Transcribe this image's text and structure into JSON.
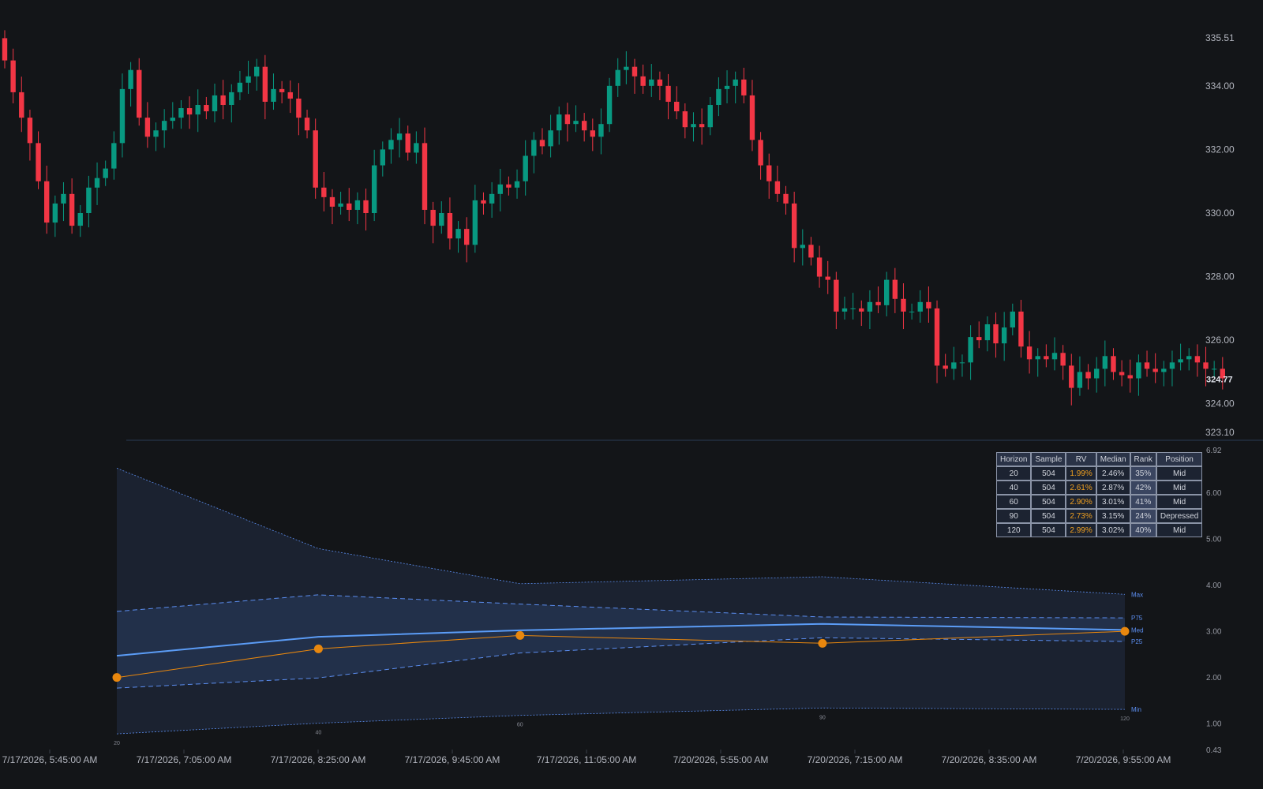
{
  "colors": {
    "background": "#131518",
    "up": "#089981",
    "down": "#f23645",
    "median_line": "#5b9cf6",
    "band_line": "#5b8def",
    "rv_line": "#e8870e",
    "outer_band_fill": "#1b2230",
    "inner_band_fill": "#22304a"
  },
  "price_axis": {
    "labels": [
      "335.51",
      "334.00",
      "332.00",
      "330.00",
      "328.00",
      "326.00",
      "324.00",
      "323.10"
    ],
    "last_price": "324.77",
    "range": [
      323.1,
      335.51
    ]
  },
  "time_axis": {
    "labels": [
      "7/17/2026, 5:45:00 AM",
      "7/17/2026, 7:05:00 AM",
      "7/17/2026, 8:25:00 AM",
      "7/17/2026, 9:45:00 AM",
      "7/17/2026, 11:05:00 AM",
      "7/20/2026, 5:55:00 AM",
      "7/20/2026, 7:15:00 AM",
      "7/20/2026, 8:35:00 AM",
      "7/20/2026, 9:55:00 AM"
    ]
  },
  "lower_axis": {
    "labels": [
      "6.92",
      "6.00",
      "5.00",
      "4.00",
      "3.00",
      "2.00",
      "1.00",
      "0.43"
    ],
    "range": [
      0.43,
      6.92
    ]
  },
  "chart_data": [
    {
      "type": "candlestick",
      "ylim": [
        323.1,
        335.51
      ],
      "closes": [
        334.8,
        333.8,
        333.0,
        332.2,
        331.0,
        329.7,
        330.3,
        330.6,
        329.6,
        330.0,
        330.8,
        331.1,
        331.4,
        332.2,
        333.9,
        334.5,
        333.0,
        332.4,
        332.6,
        332.9,
        333.0,
        333.3,
        333.1,
        333.4,
        333.2,
        333.7,
        333.4,
        333.8,
        334.1,
        334.3,
        334.6,
        333.5,
        333.9,
        333.8,
        333.6,
        333.0,
        332.6,
        330.8,
        330.5,
        330.2,
        330.3,
        330.1,
        330.4,
        330.0,
        331.5,
        332.0,
        332.3,
        332.5,
        331.9,
        332.2,
        330.1,
        329.6,
        330.0,
        329.2,
        329.5,
        329.0,
        330.4,
        330.3,
        330.6,
        330.9,
        330.8,
        331.0,
        331.8,
        332.3,
        332.1,
        332.6,
        333.1,
        332.8,
        332.9,
        332.6,
        332.4,
        332.8,
        334.0,
        334.5,
        334.6,
        334.3,
        334.0,
        334.2,
        334.0,
        333.5,
        333.2,
        332.7,
        332.8,
        332.7,
        333.4,
        333.9,
        334.0,
        334.2,
        333.7,
        332.3,
        331.5,
        331.0,
        330.6,
        330.3,
        328.9,
        329.0,
        328.6,
        328.0,
        327.9,
        326.9,
        327.0,
        327.0,
        326.9,
        327.2,
        327.1,
        327.9,
        327.3,
        326.9,
        326.9,
        327.2,
        327.0,
        325.2,
        325.1,
        325.3,
        325.3,
        326.1,
        326.0,
        326.5,
        325.9,
        326.4,
        326.9,
        325.8,
        325.4,
        325.5,
        325.4,
        325.6,
        325.2,
        324.5,
        325.0,
        324.8,
        325.1,
        325.5,
        325.0,
        324.9,
        324.8,
        325.3,
        325.1,
        325.0,
        325.1,
        325.3,
        325.4,
        325.5,
        325.3,
        325.1,
        325.1,
        324.8
      ],
      "opens": [
        335.5,
        334.8,
        333.8,
        333.0,
        332.2,
        331.0,
        329.7,
        330.3,
        330.6,
        329.6,
        330.0,
        330.8,
        331.1,
        331.4,
        332.2,
        333.9,
        334.5,
        333.0,
        332.4,
        332.6,
        332.9,
        333.0,
        333.3,
        333.1,
        333.4,
        333.2,
        333.7,
        333.4,
        333.8,
        334.1,
        334.3,
        334.6,
        333.5,
        333.9,
        333.8,
        333.6,
        333.0,
        332.6,
        330.8,
        330.5,
        330.2,
        330.3,
        330.1,
        330.4,
        330.0,
        331.5,
        332.0,
        332.3,
        332.5,
        331.9,
        332.2,
        330.1,
        329.6,
        330.0,
        329.2,
        329.5,
        329.0,
        330.4,
        330.3,
        330.6,
        330.9,
        330.8,
        331.0,
        331.8,
        332.3,
        332.1,
        332.6,
        333.1,
        332.8,
        332.9,
        332.6,
        332.4,
        332.8,
        334.0,
        334.5,
        334.6,
        334.3,
        334.0,
        334.2,
        334.0,
        333.5,
        333.2,
        332.7,
        332.8,
        332.7,
        333.4,
        333.9,
        334.0,
        334.2,
        333.7,
        332.3,
        331.5,
        331.0,
        330.6,
        330.3,
        328.9,
        329.0,
        328.6,
        328.0,
        327.9,
        326.9,
        327.0,
        327.0,
        326.9,
        327.2,
        327.1,
        327.9,
        327.3,
        326.9,
        326.9,
        327.2,
        327.0,
        325.2,
        325.1,
        325.3,
        325.3,
        326.1,
        326.0,
        326.5,
        325.9,
        326.4,
        326.9,
        325.8,
        325.4,
        325.5,
        325.4,
        325.6,
        325.2,
        324.5,
        325.0,
        324.8,
        325.1,
        325.5,
        325.0,
        324.9,
        324.8,
        325.3,
        325.1,
        325.0,
        325.1,
        325.3,
        325.4,
        325.5,
        325.3,
        325.1,
        325.1
      ]
    },
    {
      "type": "line",
      "x": [
        20,
        40,
        60,
        90,
        120
      ],
      "x_tick_labels": [
        "20",
        "40",
        "60",
        "90",
        "120"
      ],
      "ylim": [
        0.43,
        6.92
      ],
      "series": [
        {
          "name": "Max",
          "values": [
            6.52,
            4.78,
            4.02,
            4.17,
            3.79
          ]
        },
        {
          "name": "P75",
          "values": [
            3.42,
            3.78,
            3.58,
            3.3,
            3.28
          ]
        },
        {
          "name": "Med",
          "values": [
            2.46,
            2.87,
            3.01,
            3.15,
            3.02
          ]
        },
        {
          "name": "P25",
          "values": [
            1.76,
            1.98,
            2.52,
            2.85,
            2.77
          ]
        },
        {
          "name": "Min",
          "values": [
            0.77,
            1.0,
            1.17,
            1.33,
            1.3
          ]
        },
        {
          "name": "RV",
          "values": [
            1.99,
            2.61,
            2.9,
            2.73,
            2.99
          ]
        }
      ]
    }
  ],
  "table": {
    "headers": [
      "Horizon",
      "Sample",
      "RV",
      "Median",
      "Rank",
      "Position"
    ],
    "rows": [
      [
        "20",
        "504",
        "1.99%",
        "2.46%",
        "35%",
        "Mid"
      ],
      [
        "40",
        "504",
        "2.61%",
        "2.87%",
        "42%",
        "Mid"
      ],
      [
        "60",
        "504",
        "2.90%",
        "3.01%",
        "41%",
        "Mid"
      ],
      [
        "90",
        "504",
        "2.73%",
        "3.15%",
        "24%",
        "Depressed"
      ],
      [
        "120",
        "504",
        "2.99%",
        "3.02%",
        "40%",
        "Mid"
      ]
    ]
  }
}
